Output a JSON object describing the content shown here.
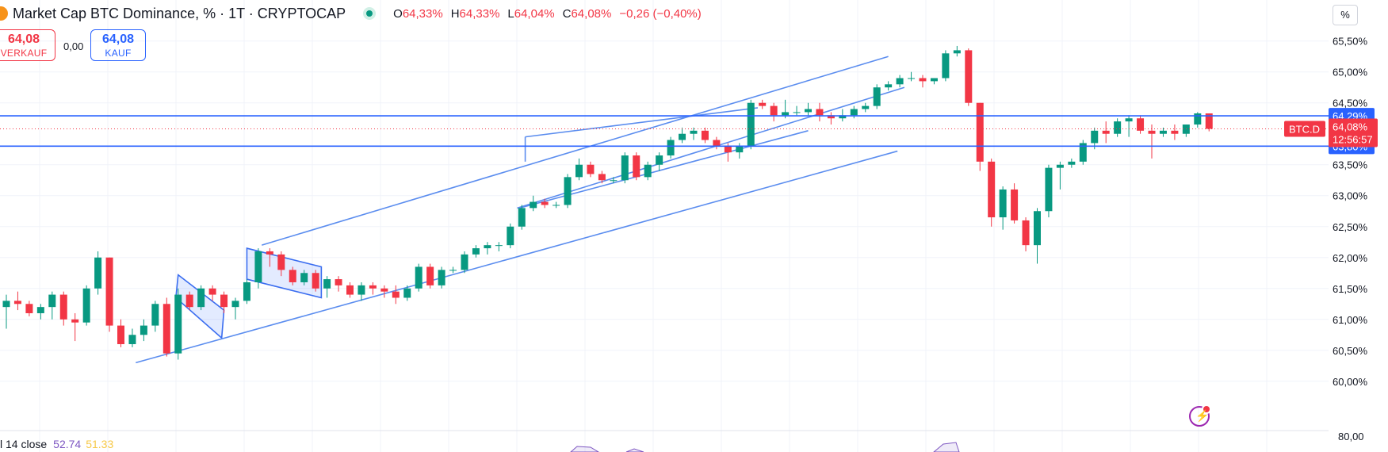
{
  "header": {
    "title": "Market Cap BTC Dominance, % · 1T · CRYPTOCAP",
    "open_label": "O",
    "open": "64,33%",
    "high_label": "H",
    "high": "64,33%",
    "low_label": "L",
    "low": "64,04%",
    "close_label": "C",
    "close": "64,08%",
    "change": "−0,26 (−0,40%)"
  },
  "trade": {
    "sell_price": "64,08",
    "sell_label": "VERKAUF",
    "spread": "0,00",
    "buy_price": "64,08",
    "buy_label": "KAUF"
  },
  "axis_unit_button": "%",
  "indicator": {
    "name": "l 14 close",
    "value1": "52.74",
    "value2": "51.33"
  },
  "chart_data": {
    "type": "candlestick",
    "symbol_label": "BTC.D",
    "last_price_label": "64,08%",
    "countdown": "12:56:57",
    "levels": [
      {
        "label": "64,29%",
        "value": 64.29
      },
      {
        "label": "63,80%",
        "value": 63.8
      }
    ],
    "y_ticks": [
      {
        "label": "65,50%",
        "value": 65.5
      },
      {
        "label": "65,00%",
        "value": 65.0
      },
      {
        "label": "64,50%",
        "value": 64.5
      },
      {
        "label": "63,50%",
        "value": 63.5
      },
      {
        "label": "63,00%",
        "value": 63.0
      },
      {
        "label": "62,50%",
        "value": 62.5
      },
      {
        "label": "62,00%",
        "value": 62.0
      },
      {
        "label": "61,50%",
        "value": 61.5
      },
      {
        "label": "61,00%",
        "value": 61.0
      },
      {
        "label": "60,50%",
        "value": 60.5
      },
      {
        "label": "60,00%",
        "value": 60.0
      }
    ],
    "rsi_tick": "80,00",
    "ylim": [
      59.6,
      65.65
    ],
    "colors": {
      "up": "#089981",
      "down": "#f23645",
      "level": "#2962ff",
      "trend": "#5b8def"
    },
    "candles": [
      [
        61.2,
        61.4,
        60.85,
        61.3
      ],
      [
        61.3,
        61.45,
        61.15,
        61.25
      ],
      [
        61.25,
        61.3,
        61.05,
        61.1
      ],
      [
        61.1,
        61.25,
        61.0,
        61.2
      ],
      [
        61.2,
        61.45,
        61.0,
        61.4
      ],
      [
        61.4,
        61.45,
        60.9,
        61.0
      ],
      [
        61.0,
        61.1,
        60.65,
        60.95
      ],
      [
        60.95,
        61.55,
        60.9,
        61.5
      ],
      [
        61.5,
        62.1,
        61.4,
        62.0
      ],
      [
        62.0,
        62.0,
        60.8,
        60.9
      ],
      [
        60.9,
        61.0,
        60.55,
        60.6
      ],
      [
        60.6,
        60.85,
        60.55,
        60.75
      ],
      [
        60.75,
        61.0,
        60.65,
        60.9
      ],
      [
        60.9,
        61.3,
        60.8,
        61.25
      ],
      [
        61.25,
        61.35,
        60.4,
        60.45
      ],
      [
        60.45,
        61.5,
        60.35,
        61.4
      ],
      [
        61.4,
        61.45,
        61.15,
        61.2
      ],
      [
        61.2,
        61.55,
        61.15,
        61.5
      ],
      [
        61.5,
        61.55,
        61.3,
        61.4
      ],
      [
        61.4,
        61.45,
        61.1,
        61.2
      ],
      [
        61.2,
        61.35,
        61.0,
        61.3
      ],
      [
        61.3,
        61.65,
        61.25,
        61.6
      ],
      [
        61.6,
        62.15,
        61.5,
        62.1
      ],
      [
        62.1,
        62.15,
        61.85,
        62.05
      ],
      [
        62.05,
        62.1,
        61.7,
        61.8
      ],
      [
        61.8,
        61.85,
        61.55,
        61.6
      ],
      [
        61.6,
        61.8,
        61.55,
        61.75
      ],
      [
        61.75,
        61.8,
        61.45,
        61.5
      ],
      [
        61.5,
        61.7,
        61.35,
        61.65
      ],
      [
        61.65,
        61.7,
        61.45,
        61.55
      ],
      [
        61.55,
        61.6,
        61.35,
        61.4
      ],
      [
        61.4,
        61.6,
        61.3,
        61.55
      ],
      [
        61.55,
        61.6,
        61.4,
        61.5
      ],
      [
        61.5,
        61.55,
        61.35,
        61.45
      ],
      [
        61.45,
        61.55,
        61.25,
        61.35
      ],
      [
        61.35,
        61.55,
        61.3,
        61.5
      ],
      [
        61.5,
        61.9,
        61.45,
        61.85
      ],
      [
        61.85,
        61.9,
        61.5,
        61.55
      ],
      [
        61.55,
        61.85,
        61.5,
        61.8
      ],
      [
        61.8,
        61.85,
        61.75,
        61.8
      ],
      [
        61.8,
        62.1,
        61.75,
        62.05
      ],
      [
        62.05,
        62.2,
        62.0,
        62.15
      ],
      [
        62.15,
        62.25,
        62.05,
        62.2
      ],
      [
        62.2,
        62.25,
        62.1,
        62.2
      ],
      [
        62.2,
        62.55,
        62.15,
        62.5
      ],
      [
        62.5,
        62.85,
        62.45,
        62.8
      ],
      [
        62.8,
        63.0,
        62.75,
        62.9
      ],
      [
        62.9,
        62.95,
        62.8,
        62.85
      ],
      [
        62.85,
        62.9,
        62.8,
        62.85
      ],
      [
        62.85,
        63.35,
        62.8,
        63.3
      ],
      [
        63.3,
        63.6,
        63.25,
        63.5
      ],
      [
        63.5,
        63.55,
        63.3,
        63.35
      ],
      [
        63.35,
        63.4,
        63.2,
        63.25
      ],
      [
        63.25,
        63.3,
        63.2,
        63.25
      ],
      [
        63.25,
        63.7,
        63.2,
        63.65
      ],
      [
        63.65,
        63.7,
        63.25,
        63.3
      ],
      [
        63.3,
        63.55,
        63.25,
        63.5
      ],
      [
        63.5,
        63.7,
        63.4,
        63.65
      ],
      [
        63.65,
        63.95,
        63.6,
        63.9
      ],
      [
        63.9,
        64.1,
        63.85,
        64.0
      ],
      [
        64.0,
        64.1,
        63.9,
        64.05
      ],
      [
        64.05,
        64.1,
        63.85,
        63.9
      ],
      [
        63.9,
        63.95,
        63.75,
        63.8
      ],
      [
        63.8,
        63.85,
        63.55,
        63.7
      ],
      [
        63.7,
        63.85,
        63.6,
        63.8
      ],
      [
        63.8,
        64.55,
        63.75,
        64.5
      ],
      [
        64.5,
        64.55,
        64.4,
        64.45
      ],
      [
        64.45,
        64.5,
        64.2,
        64.3
      ],
      [
        64.3,
        64.55,
        64.25,
        64.35
      ],
      [
        64.35,
        64.45,
        64.3,
        64.35
      ],
      [
        64.35,
        64.5,
        64.3,
        64.4
      ],
      [
        64.4,
        64.5,
        64.2,
        64.3
      ],
      [
        64.3,
        64.35,
        64.15,
        64.25
      ],
      [
        64.25,
        64.4,
        64.2,
        64.3
      ],
      [
        64.3,
        64.45,
        64.25,
        64.4
      ],
      [
        64.4,
        64.5,
        64.35,
        64.45
      ],
      [
        64.45,
        64.8,
        64.4,
        64.75
      ],
      [
        64.75,
        64.85,
        64.7,
        64.8
      ],
      [
        64.8,
        64.95,
        64.75,
        64.9
      ],
      [
        64.9,
        65.0,
        64.85,
        64.9
      ],
      [
        64.9,
        64.95,
        64.75,
        64.85
      ],
      [
        64.85,
        64.9,
        64.8,
        64.9
      ],
      [
        64.9,
        65.35,
        64.85,
        65.3
      ],
      [
        65.3,
        65.42,
        65.25,
        65.35
      ],
      [
        65.35,
        65.38,
        64.45,
        64.5
      ],
      [
        64.5,
        64.5,
        63.4,
        63.55
      ],
      [
        63.55,
        63.6,
        62.5,
        62.65
      ],
      [
        62.65,
        63.15,
        62.45,
        63.1
      ],
      [
        63.1,
        63.2,
        62.55,
        62.6
      ],
      [
        62.6,
        62.65,
        62.1,
        62.2
      ],
      [
        62.2,
        62.8,
        61.9,
        62.75
      ],
      [
        62.75,
        63.5,
        62.65,
        63.45
      ],
      [
        63.45,
        63.55,
        63.1,
        63.5
      ],
      [
        63.5,
        63.6,
        63.45,
        63.55
      ],
      [
        63.55,
        63.9,
        63.5,
        63.85
      ],
      [
        63.85,
        64.1,
        63.75,
        64.05
      ],
      [
        64.05,
        64.2,
        63.85,
        64.0
      ],
      [
        64.0,
        64.25,
        63.95,
        64.2
      ],
      [
        64.2,
        64.3,
        63.95,
        64.25
      ],
      [
        64.25,
        64.3,
        64.0,
        64.05
      ],
      [
        64.05,
        64.15,
        63.6,
        64.0
      ],
      [
        64.0,
        64.1,
        63.95,
        64.05
      ],
      [
        64.05,
        64.15,
        63.9,
        64.0
      ],
      [
        64.0,
        64.15,
        63.95,
        64.15
      ],
      [
        64.15,
        64.35,
        64.1,
        64.33
      ],
      [
        64.33,
        64.33,
        64.04,
        64.08
      ]
    ]
  }
}
